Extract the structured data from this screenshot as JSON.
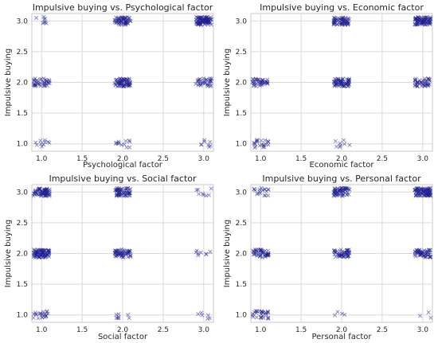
{
  "colors": {
    "marker": "#1f1f8f",
    "grid": "#d9d9d9",
    "frame": "#c8c8c8",
    "text": "#262626"
  },
  "chart_data": [
    {
      "type": "scatter",
      "marker": "x",
      "title": "Impulsive buying vs. Psychological factor",
      "xlabel": "Psychological factor",
      "ylabel": "Impulsive buying",
      "xlim": [
        0.88,
        3.12
      ],
      "ylim": [
        0.88,
        3.12
      ],
      "xticks": [
        "1.0",
        "1.5",
        "2.0",
        "2.5",
        "3.0"
      ],
      "yticks": [
        "1.0",
        "1.5",
        "2.0",
        "2.5",
        "3.0"
      ],
      "grid": true,
      "points": [
        {
          "x": 1,
          "y": 3,
          "n": 8
        },
        {
          "x": 2,
          "y": 3,
          "n": 60
        },
        {
          "x": 3,
          "y": 3,
          "n": 90
        },
        {
          "x": 1,
          "y": 2,
          "n": 40
        },
        {
          "x": 2,
          "y": 2,
          "n": 70
        },
        {
          "x": 3,
          "y": 2,
          "n": 35
        },
        {
          "x": 1,
          "y": 1,
          "n": 10
        },
        {
          "x": 2,
          "y": 1,
          "n": 12
        },
        {
          "x": 3,
          "y": 1,
          "n": 8
        }
      ]
    },
    {
      "type": "scatter",
      "marker": "x",
      "title": "Impulsive buying vs. Economic factor",
      "xlabel": "Economic factor",
      "ylabel": "Impulsive buying",
      "xlim": [
        0.88,
        3.12
      ],
      "ylim": [
        0.88,
        3.12
      ],
      "xticks": [
        "1.0",
        "1.5",
        "2.0",
        "2.5",
        "3.0"
      ],
      "yticks": [
        "1.0",
        "1.5",
        "2.0",
        "2.5",
        "3.0"
      ],
      "grid": true,
      "points": [
        {
          "x": 2,
          "y": 3,
          "n": 65
        },
        {
          "x": 3,
          "y": 3,
          "n": 90
        },
        {
          "x": 1,
          "y": 2,
          "n": 40
        },
        {
          "x": 2,
          "y": 2,
          "n": 70
        },
        {
          "x": 3,
          "y": 2,
          "n": 45
        },
        {
          "x": 1,
          "y": 1,
          "n": 22
        },
        {
          "x": 2,
          "y": 1,
          "n": 8
        }
      ]
    },
    {
      "type": "scatter",
      "marker": "x",
      "title": "Impulsive buying vs. Social factor",
      "xlabel": "Social factor",
      "ylabel": "Impulsive buying",
      "xlim": [
        0.88,
        3.12
      ],
      "ylim": [
        0.88,
        3.12
      ],
      "xticks": [
        "1.0",
        "1.5",
        "2.0",
        "2.5",
        "3.0"
      ],
      "yticks": [
        "1.0",
        "1.5",
        "2.0",
        "2.5",
        "3.0"
      ],
      "grid": true,
      "points": [
        {
          "x": 1,
          "y": 3,
          "n": 75
        },
        {
          "x": 2,
          "y": 3,
          "n": 65
        },
        {
          "x": 3,
          "y": 3,
          "n": 8
        },
        {
          "x": 1,
          "y": 2,
          "n": 90
        },
        {
          "x": 2,
          "y": 2,
          "n": 60
        },
        {
          "x": 3,
          "y": 2,
          "n": 8
        },
        {
          "x": 1,
          "y": 1,
          "n": 22
        },
        {
          "x": 2,
          "y": 1,
          "n": 8
        },
        {
          "x": 3,
          "y": 1,
          "n": 6
        }
      ]
    },
    {
      "type": "scatter",
      "marker": "x",
      "title": "Impulsive buying vs. Personal factor",
      "xlabel": "Personal factor",
      "ylabel": "Impulsive buying",
      "xlim": [
        0.88,
        3.12
      ],
      "ylim": [
        0.88,
        3.12
      ],
      "xticks": [
        "1.0",
        "1.5",
        "2.0",
        "2.5",
        "3.0"
      ],
      "yticks": [
        "1.0",
        "1.5",
        "2.0",
        "2.5",
        "3.0"
      ],
      "grid": true,
      "points": [
        {
          "x": 1,
          "y": 3,
          "n": 18
        },
        {
          "x": 2,
          "y": 3,
          "n": 65
        },
        {
          "x": 3,
          "y": 3,
          "n": 90
        },
        {
          "x": 1,
          "y": 2,
          "n": 50
        },
        {
          "x": 2,
          "y": 2,
          "n": 55
        },
        {
          "x": 3,
          "y": 2,
          "n": 60
        },
        {
          "x": 1,
          "y": 1,
          "n": 30
        },
        {
          "x": 2,
          "y": 1,
          "n": 4
        },
        {
          "x": 3,
          "y": 1,
          "n": 3
        }
      ]
    }
  ]
}
